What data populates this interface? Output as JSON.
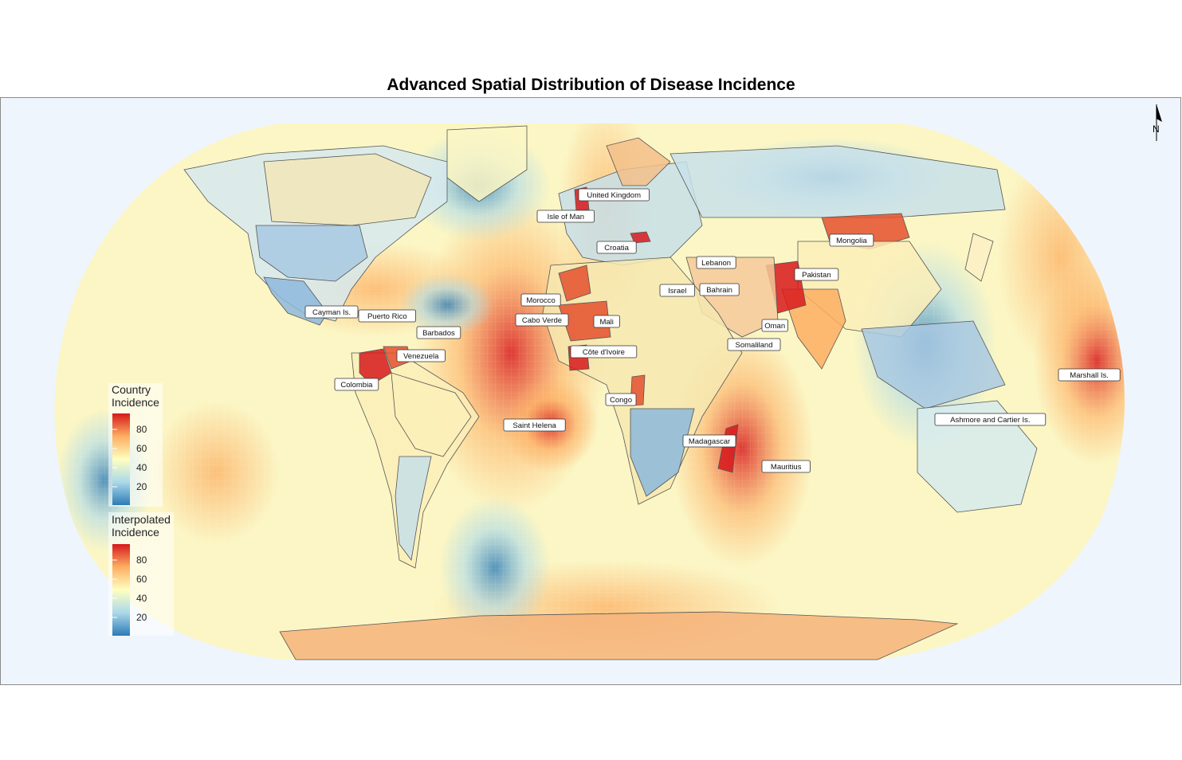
{
  "title": "Advanced Spatial Distribution of Disease Incidence",
  "north_arrow": {
    "label": "N",
    "icon": "north-arrow-icon"
  },
  "legends": [
    {
      "id": "country",
      "title": "Country\nIncidence",
      "ticks": [
        "80",
        "60",
        "40",
        "20"
      ]
    },
    {
      "id": "interpolated",
      "title": "Interpolated\nIncidence",
      "ticks": [
        "80",
        "60",
        "40",
        "20"
      ]
    }
  ],
  "colors": {
    "ocean_background": "#eef5fd",
    "scale": [
      "#2c7bb6",
      "#abd9e9",
      "#ffffbf",
      "#fdae61",
      "#d7191c"
    ],
    "border": "#555555",
    "label_fill": "#ffffff"
  },
  "map_labels": [
    "United Kingdom",
    "Isle of Man",
    "Mongolia",
    "Croatia",
    "Lebanon",
    "Pakistan",
    "Israel",
    "Bahrain",
    "Morocco",
    "Cayman Is.",
    "Puerto Rico",
    "Cabo Verde",
    "Mali",
    "Oman",
    "Barbados",
    "Somaliland",
    "Côte d'Ivoire",
    "Venezuela",
    "Marshall Is.",
    "Colombia",
    "Congo",
    "Saint Helena",
    "Ashmore and Cartier Is.",
    "Madagascar",
    "Mauritius"
  ]
}
